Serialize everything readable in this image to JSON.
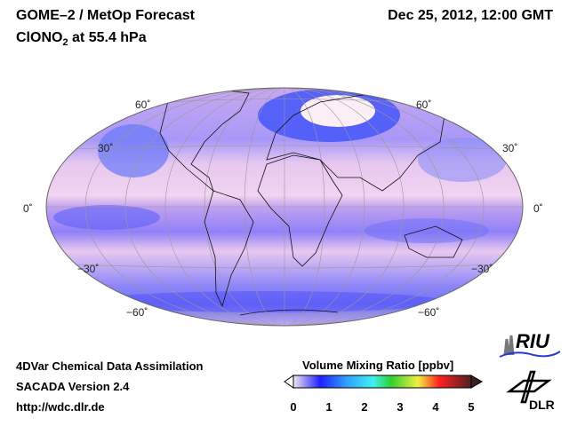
{
  "header": {
    "title": "GOME–2 / MetOp Forecast",
    "species": "ClONO",
    "species_sub": "2",
    "level": " at 55.4 hPa",
    "date": "Dec 25, 2012, 12:00 GMT"
  },
  "map": {
    "lat_labels_left": [
      "60˚",
      "30˚",
      "0˚",
      "−30˚",
      "−60˚"
    ],
    "lat_labels_right": [
      "60˚",
      "30˚",
      "0˚",
      "−30˚",
      "−60˚"
    ]
  },
  "footer": {
    "line1": "4DVar Chemical Data Assimilation",
    "line2": "SACADA Version 2.4",
    "line3": "http://wdc.dlr.de"
  },
  "colorbar": {
    "title": "Volume Mixing Ratio [ppbv]",
    "ticks": [
      "0",
      "1",
      "2",
      "3",
      "4",
      "5"
    ],
    "min": 0,
    "max": 5,
    "colors": [
      "#f4e6ee",
      "#2020ff",
      "#30a0ff",
      "#40f0f0",
      "#30d030",
      "#f0f040",
      "#ff2020",
      "#502020"
    ]
  },
  "logos": {
    "riu": "RIU",
    "dlr": "DLR"
  }
}
